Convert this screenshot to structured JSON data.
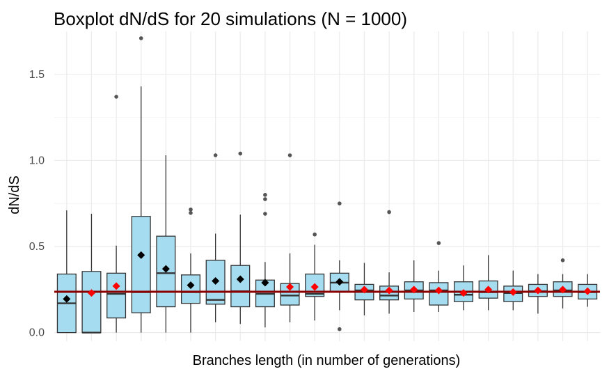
{
  "chart_data": {
    "type": "boxplot",
    "title": "Boxplot dN/dS for 20 simulations (N = 1000)",
    "xlabel": "Branches length (in number of generations)",
    "ylabel": "dN/dS",
    "ylim": [
      -0.05,
      1.75
    ],
    "yticks": [
      0.0,
      0.5,
      1.0,
      1.5
    ],
    "ytick_labels": [
      "0.0",
      "0.5",
      "1.0",
      "1.5"
    ],
    "reference_line": 0.237,
    "colors": {
      "box_fill": "#a6dcef",
      "box_stroke": "#333333",
      "whisker": "#333333",
      "outlier": "#555555",
      "mean_black": "#000000",
      "mean_red": "#ff0000",
      "reference_line": "#8b0000",
      "grid_major": "#ebebeb",
      "grid_minor": "#f4f4f4"
    },
    "boxes": [
      {
        "min": 0.0,
        "q1": 0.0,
        "median": 0.17,
        "q3": 0.34,
        "max": 0.71,
        "mean": 0.195,
        "mean_color": "black",
        "outliers": []
      },
      {
        "min": 0.0,
        "q1": 0.0,
        "median": 0.0,
        "q3": 0.355,
        "max": 0.69,
        "mean": 0.23,
        "mean_color": "red",
        "outliers": []
      },
      {
        "min": 0.0,
        "q1": 0.085,
        "median": 0.225,
        "q3": 0.345,
        "max": 0.505,
        "mean": 0.27,
        "mean_color": "red",
        "outliers": [
          1.37
        ]
      },
      {
        "min": 0.0,
        "q1": 0.115,
        "median": 0.235,
        "q3": 0.675,
        "max": 1.43,
        "mean": 0.45,
        "mean_color": "black",
        "outliers": [
          1.71
        ]
      },
      {
        "min": 0.0,
        "q1": 0.15,
        "median": 0.345,
        "q3": 0.56,
        "max": 1.03,
        "mean": 0.37,
        "mean_color": "black",
        "outliers": []
      },
      {
        "min": 0.0,
        "q1": 0.17,
        "median": 0.235,
        "q3": 0.335,
        "max": 0.46,
        "mean": 0.275,
        "mean_color": "black",
        "outliers": [
          0.695,
          0.715
        ]
      },
      {
        "min": 0.06,
        "q1": 0.165,
        "median": 0.19,
        "q3": 0.42,
        "max": 0.575,
        "mean": 0.3,
        "mean_color": "black",
        "outliers": [
          1.03
        ]
      },
      {
        "min": 0.05,
        "q1": 0.15,
        "median": 0.24,
        "q3": 0.39,
        "max": 0.685,
        "mean": 0.31,
        "mean_color": "black",
        "outliers": [
          1.04
        ]
      },
      {
        "min": 0.03,
        "q1": 0.15,
        "median": 0.225,
        "q3": 0.305,
        "max": 0.41,
        "mean": 0.29,
        "mean_color": "black",
        "outliers": [
          0.69,
          0.775,
          0.8
        ]
      },
      {
        "min": 0.06,
        "q1": 0.16,
        "median": 0.215,
        "q3": 0.285,
        "max": 0.46,
        "mean": 0.265,
        "mean_color": "red",
        "outliers": [
          1.03
        ]
      },
      {
        "min": 0.07,
        "q1": 0.21,
        "median": 0.225,
        "q3": 0.34,
        "max": 0.51,
        "mean": 0.265,
        "mean_color": "red",
        "outliers": [
          0.57
        ]
      },
      {
        "min": 0.13,
        "q1": 0.24,
        "median": 0.29,
        "q3": 0.345,
        "max": 0.42,
        "mean": 0.295,
        "mean_color": "black",
        "outliers": [
          0.02,
          0.75
        ]
      },
      {
        "min": 0.1,
        "q1": 0.19,
        "median": 0.245,
        "q3": 0.28,
        "max": 0.405,
        "mean": 0.25,
        "mean_color": "red",
        "outliers": []
      },
      {
        "min": 0.11,
        "q1": 0.19,
        "median": 0.215,
        "q3": 0.27,
        "max": 0.35,
        "mean": 0.245,
        "mean_color": "red",
        "outliers": [
          0.7
        ]
      },
      {
        "min": 0.12,
        "q1": 0.195,
        "median": 0.245,
        "q3": 0.295,
        "max": 0.42,
        "mean": 0.25,
        "mean_color": "red",
        "outliers": []
      },
      {
        "min": 0.12,
        "q1": 0.16,
        "median": 0.245,
        "q3": 0.29,
        "max": 0.36,
        "mean": 0.245,
        "mean_color": "red",
        "outliers": [
          0.52
        ]
      },
      {
        "min": 0.13,
        "q1": 0.18,
        "median": 0.22,
        "q3": 0.295,
        "max": 0.39,
        "mean": 0.23,
        "mean_color": "red",
        "outliers": []
      },
      {
        "min": 0.13,
        "q1": 0.2,
        "median": 0.235,
        "q3": 0.3,
        "max": 0.45,
        "mean": 0.25,
        "mean_color": "red",
        "outliers": []
      },
      {
        "min": 0.13,
        "q1": 0.18,
        "median": 0.23,
        "q3": 0.27,
        "max": 0.36,
        "mean": 0.235,
        "mean_color": "red",
        "outliers": []
      },
      {
        "min": 0.11,
        "q1": 0.21,
        "median": 0.24,
        "q3": 0.28,
        "max": 0.34,
        "mean": 0.245,
        "mean_color": "red",
        "outliers": []
      },
      {
        "min": 0.14,
        "q1": 0.21,
        "median": 0.245,
        "q3": 0.295,
        "max": 0.34,
        "mean": 0.25,
        "mean_color": "red",
        "outliers": [
          0.42
        ]
      },
      {
        "min": 0.15,
        "q1": 0.195,
        "median": 0.235,
        "q3": 0.28,
        "max": 0.34,
        "mean": 0.24,
        "mean_color": "red",
        "outliers": []
      }
    ]
  }
}
